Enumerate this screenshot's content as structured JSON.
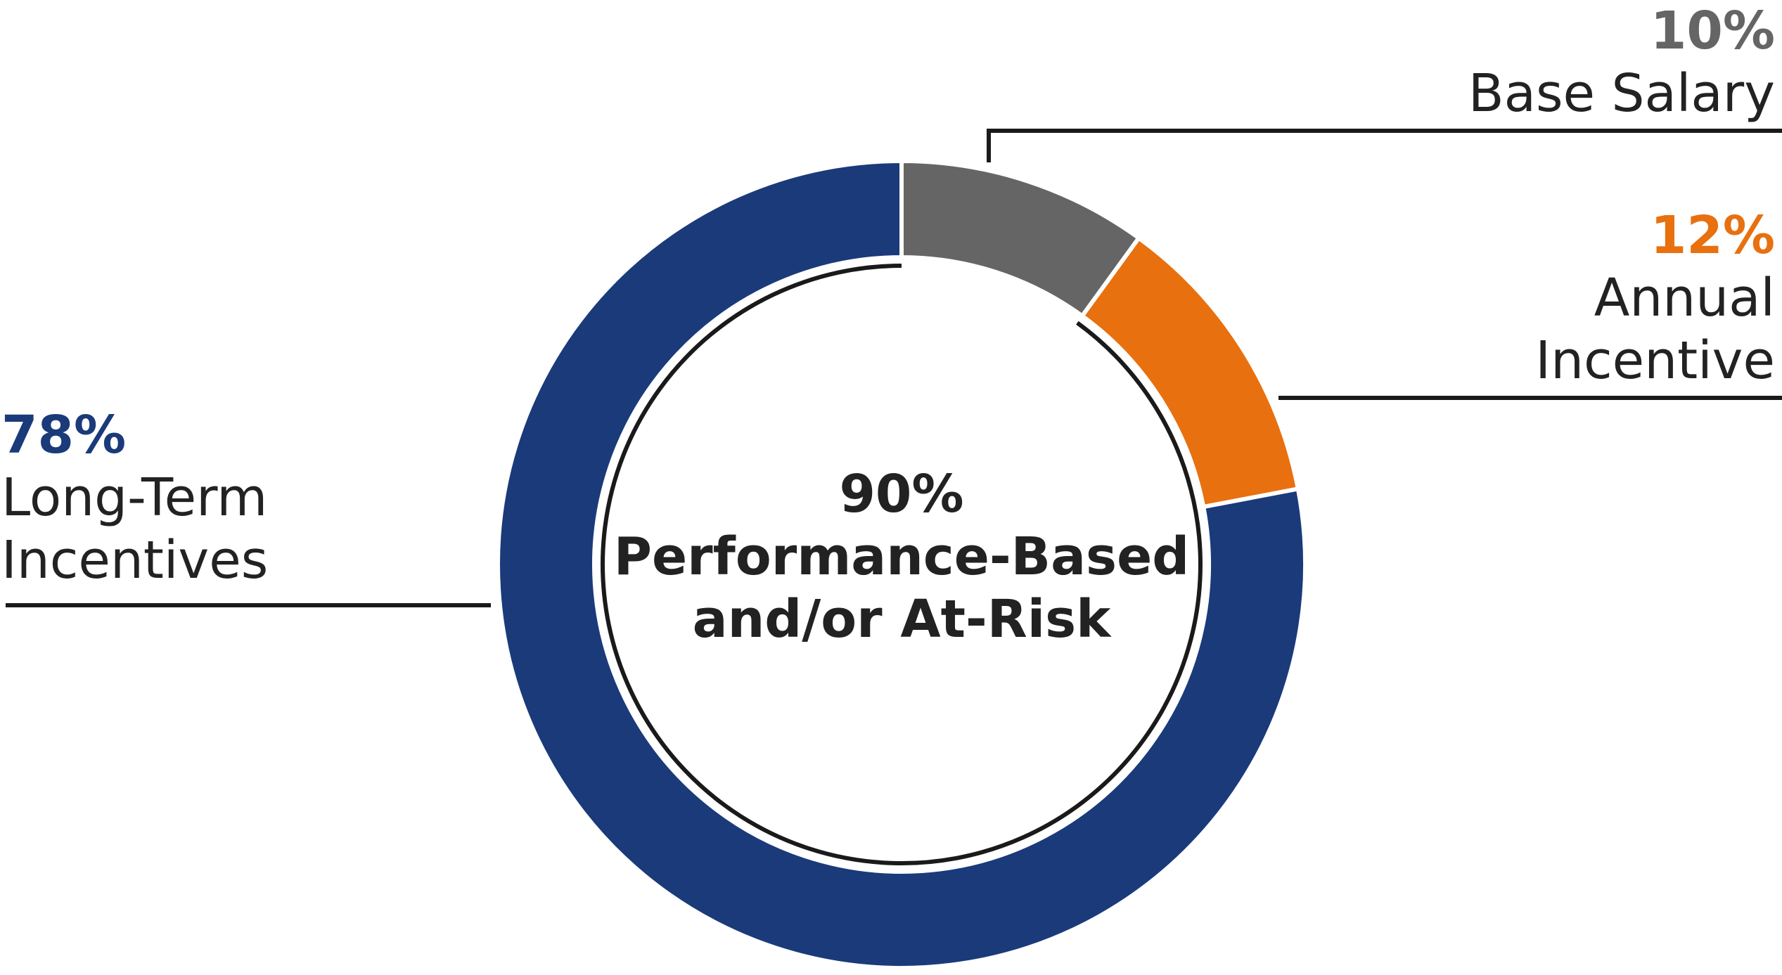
{
  "chart_data": {
    "type": "donut",
    "categories": [
      "Base Salary",
      "Annual Incentive",
      "Long-Term Incentives"
    ],
    "values": [
      10,
      12,
      78
    ],
    "value_labels": [
      "10%",
      "12%",
      "78%"
    ],
    "colors": [
      "#666565",
      "#e8700f",
      "#1a3a7a"
    ],
    "center": {
      "value": 90,
      "label": "90%",
      "text": [
        "Performance-Based",
        "and/or At-Risk"
      ]
    }
  }
}
